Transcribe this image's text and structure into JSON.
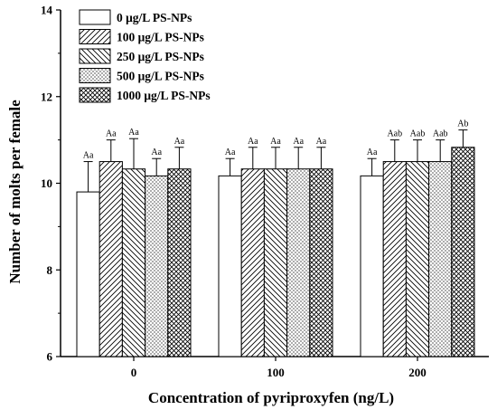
{
  "chart_data": {
    "type": "bar",
    "xlabel": "Concentration of pyriproxyfen (ng/L)",
    "ylabel": "Number of molts per female",
    "categories": [
      "0",
      "100",
      "200"
    ],
    "ylim": [
      6,
      14
    ],
    "yticks": [
      "6",
      "8",
      "10",
      "12",
      "14"
    ],
    "legend_position": "top-left",
    "grid": false,
    "series": [
      {
        "name": "0 μg/L PS-NPs",
        "pattern": "blank",
        "values": [
          9.8,
          10.17,
          10.17
        ],
        "errors": [
          0.7,
          0.4,
          0.4
        ],
        "labels": [
          "Aa",
          "Aa",
          "Aa"
        ]
      },
      {
        "name": "100 μg/L PS-NPs",
        "pattern": "diag-up",
        "values": [
          10.5,
          10.33,
          10.5
        ],
        "errors": [
          0.5,
          0.5,
          0.5
        ],
        "labels": [
          "Aa",
          "Aa",
          "Aab"
        ]
      },
      {
        "name": "250 μg/L PS-NPs",
        "pattern": "diag-down",
        "values": [
          10.33,
          10.33,
          10.5
        ],
        "errors": [
          0.7,
          0.5,
          0.5
        ],
        "labels": [
          "Aa",
          "Aa",
          "Aab"
        ]
      },
      {
        "name": "500 μg/L PS-NPs",
        "pattern": "dots",
        "values": [
          10.17,
          10.33,
          10.5
        ],
        "errors": [
          0.4,
          0.5,
          0.5
        ],
        "labels": [
          "Aa",
          "Aa",
          "Aab"
        ]
      },
      {
        "name": "1000 μg/L PS-NPs",
        "pattern": "crosshatch",
        "values": [
          10.33,
          10.33,
          10.83
        ],
        "errors": [
          0.5,
          0.5,
          0.4
        ],
        "labels": [
          "Aa",
          "Aa",
          "Ab"
        ]
      }
    ]
  }
}
